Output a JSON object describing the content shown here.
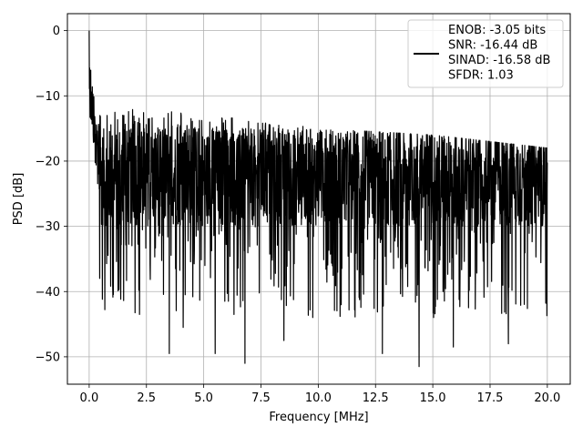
{
  "chart_data": {
    "type": "line",
    "xlabel": "Frequency [MHz]",
    "ylabel": "PSD [dB]",
    "xlim": [
      -0.95,
      21.0
    ],
    "ylim": [
      -54.2,
      2.6
    ],
    "xticks": [
      {
        "value": 0.0,
        "label": "0.0"
      },
      {
        "value": 2.5,
        "label": "2.5"
      },
      {
        "value": 5.0,
        "label": "5.0"
      },
      {
        "value": 7.5,
        "label": "7.5"
      },
      {
        "value": 10.0,
        "label": "10.0"
      },
      {
        "value": 12.5,
        "label": "12.5"
      },
      {
        "value": 15.0,
        "label": "15.0"
      },
      {
        "value": 17.5,
        "label": "17.5"
      },
      {
        "value": 20.0,
        "label": "20.0"
      }
    ],
    "yticks": [
      {
        "value": 0,
        "label": "0"
      },
      {
        "value": -10,
        "label": "−10"
      },
      {
        "value": -20,
        "label": "−20"
      },
      {
        "value": -30,
        "label": "−30"
      },
      {
        "value": -40,
        "label": "−40"
      },
      {
        "value": -50,
        "label": "−50"
      }
    ],
    "grid": true,
    "legend_position": "upper-right",
    "series": [
      {
        "label_lines": [
          "ENOB: -3.05 bits",
          "SNR: -16.44 dB",
          "SINAD: -16.58 dB",
          "SFDR: 1.03"
        ],
        "color": "#000000",
        "x_range": [
          0.0,
          20.0
        ],
        "n_points": 2048,
        "peak": [
          0.0,
          0.0
        ],
        "upper_envelope": [
          [
            0.0,
            -3
          ],
          [
            0.2,
            -8
          ],
          [
            0.4,
            -12
          ],
          [
            1.0,
            -12
          ],
          [
            2.5,
            -12
          ],
          [
            5.0,
            -13
          ],
          [
            7.5,
            -13.5
          ],
          [
            10.0,
            -15
          ],
          [
            12.5,
            -15.5
          ],
          [
            15.0,
            -16
          ],
          [
            17.5,
            -17
          ],
          [
            20.0,
            -18
          ]
        ],
        "core_band": [
          -30,
          -15
        ],
        "notable_minima": [
          [
            3.5,
            -49.5
          ],
          [
            5.5,
            -49.5
          ],
          [
            6.8,
            -51.0
          ],
          [
            8.5,
            -47.5
          ],
          [
            14.4,
            -51.5
          ],
          [
            12.8,
            -49.5
          ],
          [
            15.9,
            -48.5
          ],
          [
            18.3,
            -48.0
          ],
          [
            2.2,
            -43.5
          ],
          [
            4.1,
            -45.5
          ]
        ]
      }
    ]
  }
}
